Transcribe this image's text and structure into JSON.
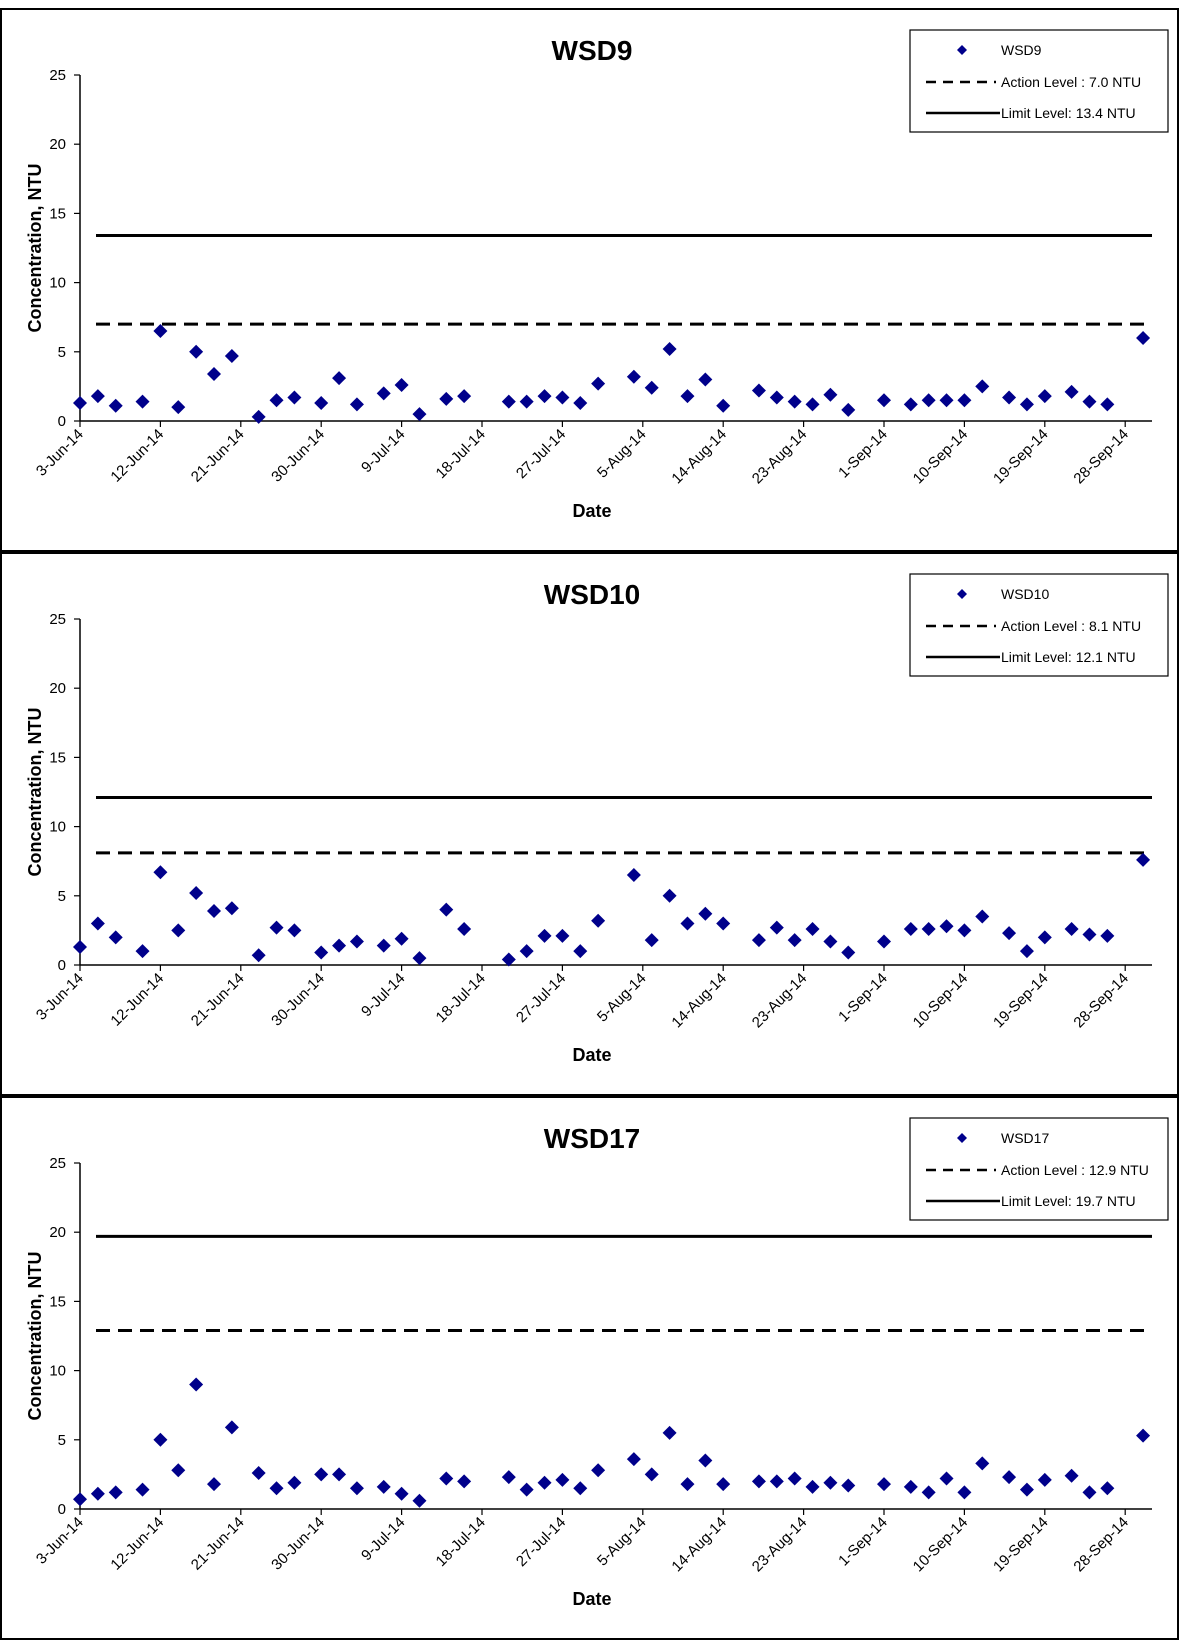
{
  "chart_data": [
    {
      "type": "scatter",
      "title": "WSD9",
      "xlabel": "Date",
      "ylabel": "Concentration, NTU",
      "ylim": [
        0,
        25
      ],
      "yticks": [
        "0",
        "5",
        "10",
        "15",
        "20",
        "25"
      ],
      "xlim": [
        "2014-06-03",
        "2014-10-01"
      ],
      "xtick_labels": [
        "3-Jun-14",
        "12-Jun-14",
        "21-Jun-14",
        "30-Jun-14",
        "9-Jul-14",
        "18-Jul-14",
        "27-Jul-14",
        "5-Aug-14",
        "14-Aug-14",
        "23-Aug-14",
        "1-Sep-14",
        "10-Sep-14",
        "19-Sep-14",
        "28-Sep-14"
      ],
      "legend_position": "top-right",
      "grid": false,
      "series": [
        {
          "name": "WSD9",
          "marker": "diamond",
          "color": "#00008B",
          "points": [
            [
              "2014-06-03",
              1.3
            ],
            [
              "2014-06-05",
              1.8
            ],
            [
              "2014-06-07",
              1.1
            ],
            [
              "2014-06-10",
              1.4
            ],
            [
              "2014-06-12",
              6.5
            ],
            [
              "2014-06-14",
              1.0
            ],
            [
              "2014-06-16",
              5.0
            ],
            [
              "2014-06-18",
              3.4
            ],
            [
              "2014-06-20",
              4.7
            ],
            [
              "2014-06-23",
              0.3
            ],
            [
              "2014-06-25",
              1.5
            ],
            [
              "2014-06-27",
              1.7
            ],
            [
              "2014-06-30",
              1.3
            ],
            [
              "2014-07-02",
              3.1
            ],
            [
              "2014-07-04",
              1.2
            ],
            [
              "2014-07-07",
              2.0
            ],
            [
              "2014-07-09",
              2.6
            ],
            [
              "2014-07-11",
              0.5
            ],
            [
              "2014-07-14",
              1.6
            ],
            [
              "2014-07-16",
              1.8
            ],
            [
              "2014-07-21",
              1.4
            ],
            [
              "2014-07-23",
              1.4
            ],
            [
              "2014-07-25",
              1.8
            ],
            [
              "2014-07-27",
              1.7
            ],
            [
              "2014-07-29",
              1.3
            ],
            [
              "2014-07-31",
              2.7
            ],
            [
              "2014-08-04",
              3.2
            ],
            [
              "2014-08-06",
              2.4
            ],
            [
              "2014-08-08",
              5.2
            ],
            [
              "2014-08-10",
              1.8
            ],
            [
              "2014-08-12",
              3.0
            ],
            [
              "2014-08-14",
              1.1
            ],
            [
              "2014-08-18",
              2.2
            ],
            [
              "2014-08-20",
              1.7
            ],
            [
              "2014-08-22",
              1.4
            ],
            [
              "2014-08-24",
              1.2
            ],
            [
              "2014-08-26",
              1.9
            ],
            [
              "2014-08-28",
              0.8
            ],
            [
              "2014-09-01",
              1.5
            ],
            [
              "2014-09-04",
              1.2
            ],
            [
              "2014-09-06",
              1.5
            ],
            [
              "2014-09-08",
              1.5
            ],
            [
              "2014-09-10",
              1.5
            ],
            [
              "2014-09-12",
              2.5
            ],
            [
              "2014-09-15",
              1.7
            ],
            [
              "2014-09-17",
              1.2
            ],
            [
              "2014-09-19",
              1.8
            ],
            [
              "2014-09-22",
              2.1
            ],
            [
              "2014-09-24",
              1.4
            ],
            [
              "2014-09-26",
              1.2
            ],
            [
              "2014-09-30",
              6.0
            ]
          ]
        }
      ],
      "reference_lines": [
        {
          "label": "Action Level : 7.0 NTU",
          "value": 7.0,
          "style": "dashed"
        },
        {
          "label": "Limit Level: 13.4 NTU",
          "value": 13.4,
          "style": "solid"
        }
      ]
    },
    {
      "type": "scatter",
      "title": "WSD10",
      "xlabel": "Date",
      "ylabel": "Concentration, NTU",
      "ylim": [
        0,
        25
      ],
      "yticks": [
        "0",
        "5",
        "10",
        "15",
        "20",
        "25"
      ],
      "xlim": [
        "2014-06-03",
        "2014-10-01"
      ],
      "xtick_labels": [
        "3-Jun-14",
        "12-Jun-14",
        "21-Jun-14",
        "30-Jun-14",
        "9-Jul-14",
        "18-Jul-14",
        "27-Jul-14",
        "5-Aug-14",
        "14-Aug-14",
        "23-Aug-14",
        "1-Sep-14",
        "10-Sep-14",
        "19-Sep-14",
        "28-Sep-14"
      ],
      "legend_position": "top-right",
      "grid": false,
      "series": [
        {
          "name": "WSD10",
          "marker": "diamond",
          "color": "#00008B",
          "points": [
            [
              "2014-06-03",
              1.3
            ],
            [
              "2014-06-05",
              3.0
            ],
            [
              "2014-06-07",
              2.0
            ],
            [
              "2014-06-10",
              1.0
            ],
            [
              "2014-06-12",
              6.7
            ],
            [
              "2014-06-14",
              2.5
            ],
            [
              "2014-06-16",
              5.2
            ],
            [
              "2014-06-18",
              3.9
            ],
            [
              "2014-06-20",
              4.1
            ],
            [
              "2014-06-23",
              0.7
            ],
            [
              "2014-06-25",
              2.7
            ],
            [
              "2014-06-27",
              2.5
            ],
            [
              "2014-06-30",
              0.9
            ],
            [
              "2014-07-02",
              1.4
            ],
            [
              "2014-07-04",
              1.7
            ],
            [
              "2014-07-07",
              1.4
            ],
            [
              "2014-07-09",
              1.9
            ],
            [
              "2014-07-11",
              0.5
            ],
            [
              "2014-07-14",
              4.0
            ],
            [
              "2014-07-16",
              2.6
            ],
            [
              "2014-07-21",
              0.4
            ],
            [
              "2014-07-23",
              1.0
            ],
            [
              "2014-07-25",
              2.1
            ],
            [
              "2014-07-27",
              2.1
            ],
            [
              "2014-07-29",
              1.0
            ],
            [
              "2014-07-31",
              3.2
            ],
            [
              "2014-08-04",
              6.5
            ],
            [
              "2014-08-06",
              1.8
            ],
            [
              "2014-08-08",
              5.0
            ],
            [
              "2014-08-10",
              3.0
            ],
            [
              "2014-08-12",
              3.7
            ],
            [
              "2014-08-14",
              3.0
            ],
            [
              "2014-08-18",
              1.8
            ],
            [
              "2014-08-20",
              2.7
            ],
            [
              "2014-08-22",
              1.8
            ],
            [
              "2014-08-24",
              2.6
            ],
            [
              "2014-08-26",
              1.7
            ],
            [
              "2014-08-28",
              0.9
            ],
            [
              "2014-09-01",
              1.7
            ],
            [
              "2014-09-04",
              2.6
            ],
            [
              "2014-09-06",
              2.6
            ],
            [
              "2014-09-08",
              2.8
            ],
            [
              "2014-09-10",
              2.5
            ],
            [
              "2014-09-12",
              3.5
            ],
            [
              "2014-09-15",
              2.3
            ],
            [
              "2014-09-17",
              1.0
            ],
            [
              "2014-09-19",
              2.0
            ],
            [
              "2014-09-22",
              2.6
            ],
            [
              "2014-09-24",
              2.2
            ],
            [
              "2014-09-26",
              2.1
            ],
            [
              "2014-09-30",
              7.6
            ]
          ]
        }
      ],
      "reference_lines": [
        {
          "label": "Action Level : 8.1 NTU",
          "value": 8.1,
          "style": "dashed"
        },
        {
          "label": "Limit Level: 12.1 NTU",
          "value": 12.1,
          "style": "solid"
        }
      ]
    },
    {
      "type": "scatter",
      "title": "WSD17",
      "xlabel": "Date",
      "ylabel": "Concentration, NTU",
      "ylim": [
        0,
        25
      ],
      "yticks": [
        "0",
        "5",
        "10",
        "15",
        "20",
        "25"
      ],
      "xlim": [
        "2014-06-03",
        "2014-10-01"
      ],
      "xtick_labels": [
        "3-Jun-14",
        "12-Jun-14",
        "21-Jun-14",
        "30-Jun-14",
        "9-Jul-14",
        "18-Jul-14",
        "27-Jul-14",
        "5-Aug-14",
        "14-Aug-14",
        "23-Aug-14",
        "1-Sep-14",
        "10-Sep-14",
        "19-Sep-14",
        "28-Sep-14"
      ],
      "legend_position": "top-right",
      "grid": false,
      "series": [
        {
          "name": "WSD17",
          "marker": "diamond",
          "color": "#00008B",
          "points": [
            [
              "2014-06-03",
              0.7
            ],
            [
              "2014-06-05",
              1.1
            ],
            [
              "2014-06-07",
              1.2
            ],
            [
              "2014-06-10",
              1.4
            ],
            [
              "2014-06-12",
              5.0
            ],
            [
              "2014-06-14",
              2.8
            ],
            [
              "2014-06-16",
              9.0
            ],
            [
              "2014-06-18",
              1.8
            ],
            [
              "2014-06-20",
              5.9
            ],
            [
              "2014-06-23",
              2.6
            ],
            [
              "2014-06-25",
              1.5
            ],
            [
              "2014-06-27",
              1.9
            ],
            [
              "2014-06-30",
              2.5
            ],
            [
              "2014-07-02",
              2.5
            ],
            [
              "2014-07-04",
              1.5
            ],
            [
              "2014-07-07",
              1.6
            ],
            [
              "2014-07-09",
              1.1
            ],
            [
              "2014-07-11",
              0.6
            ],
            [
              "2014-07-14",
              2.2
            ],
            [
              "2014-07-16",
              2.0
            ],
            [
              "2014-07-21",
              2.3
            ],
            [
              "2014-07-23",
              1.4
            ],
            [
              "2014-07-25",
              1.9
            ],
            [
              "2014-07-27",
              2.1
            ],
            [
              "2014-07-29",
              1.5
            ],
            [
              "2014-07-31",
              2.8
            ],
            [
              "2014-08-04",
              3.6
            ],
            [
              "2014-08-06",
              2.5
            ],
            [
              "2014-08-08",
              5.5
            ],
            [
              "2014-08-10",
              1.8
            ],
            [
              "2014-08-12",
              3.5
            ],
            [
              "2014-08-14",
              1.8
            ],
            [
              "2014-08-18",
              2.0
            ],
            [
              "2014-08-20",
              2.0
            ],
            [
              "2014-08-22",
              2.2
            ],
            [
              "2014-08-24",
              1.6
            ],
            [
              "2014-08-26",
              1.9
            ],
            [
              "2014-08-28",
              1.7
            ],
            [
              "2014-09-01",
              1.8
            ],
            [
              "2014-09-04",
              1.6
            ],
            [
              "2014-09-06",
              1.2
            ],
            [
              "2014-09-08",
              2.2
            ],
            [
              "2014-09-10",
              1.2
            ],
            [
              "2014-09-12",
              3.3
            ],
            [
              "2014-09-15",
              2.3
            ],
            [
              "2014-09-17",
              1.4
            ],
            [
              "2014-09-19",
              2.1
            ],
            [
              "2014-09-22",
              2.4
            ],
            [
              "2014-09-24",
              1.2
            ],
            [
              "2014-09-26",
              1.5
            ],
            [
              "2014-09-30",
              5.3
            ]
          ]
        }
      ],
      "reference_lines": [
        {
          "label": "Action Level : 12.9 NTU",
          "value": 12.9,
          "style": "dashed"
        },
        {
          "label": "Limit Level: 19.7 NTU",
          "value": 19.7,
          "style": "solid"
        }
      ]
    }
  ]
}
